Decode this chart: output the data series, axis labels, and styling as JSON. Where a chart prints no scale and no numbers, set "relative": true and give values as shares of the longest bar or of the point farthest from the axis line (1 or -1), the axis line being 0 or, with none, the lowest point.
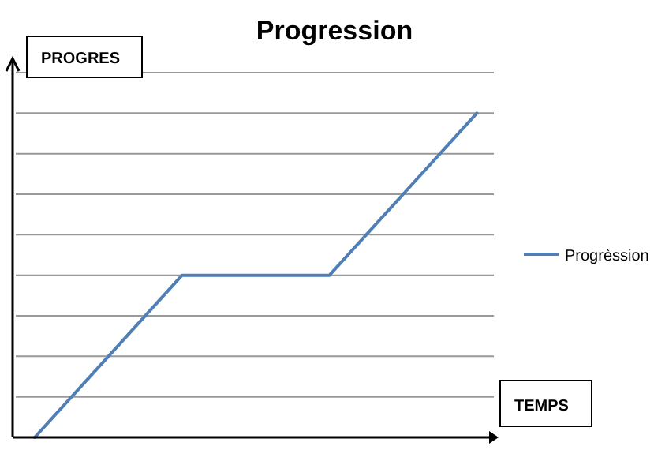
{
  "chart_data": {
    "type": "line",
    "title": "Progression",
    "xlabel": "TEMPS",
    "ylabel": "PROGRES",
    "categories": [
      null,
      null,
      null,
      null,
      null,
      null,
      null
    ],
    "series": [
      {
        "name": "Progrèssion",
        "color": "#4f7fb5",
        "values": [
          0,
          0.25,
          0.5,
          0.5,
          0.5,
          0.75,
          1
        ]
      }
    ],
    "relative": true,
    "grid": "y",
    "legend": "right",
    "marker": "none",
    "line_style": "solid"
  }
}
